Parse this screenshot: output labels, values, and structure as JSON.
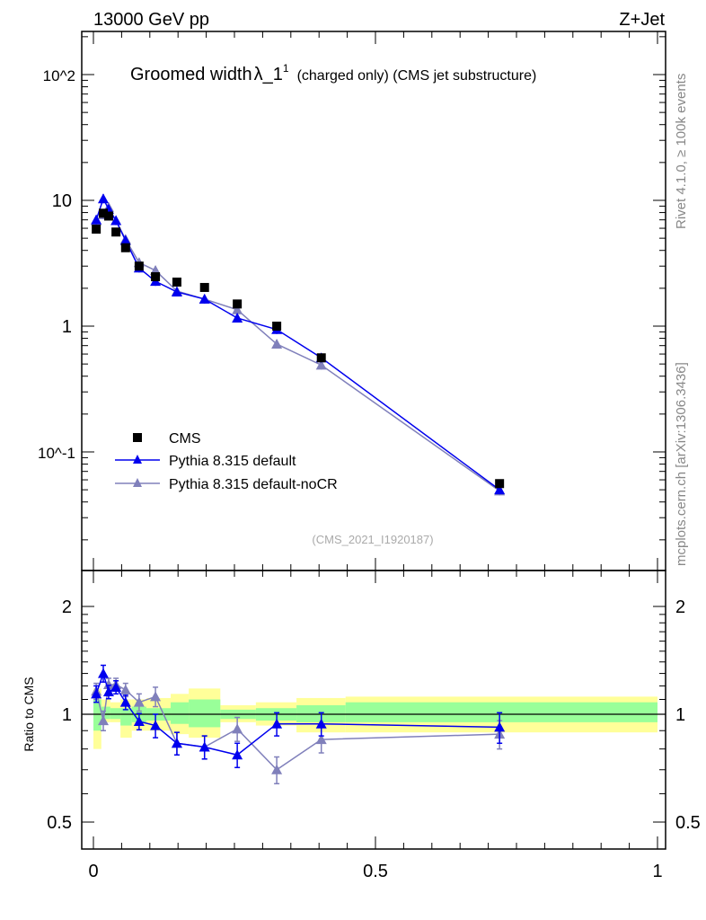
{
  "header": {
    "left": "13000 GeV pp",
    "right": "Z+Jet"
  },
  "side_labels": {
    "rivet": "Rivet 4.1.0, ≥ 100k events",
    "mcplots": "mcplots.cern.ch [arXiv:1306.3436]"
  },
  "title": {
    "main": "Groomed width",
    "symbol": "λ_1",
    "sup": "1",
    "suffix": "(charged only) (CMS jet substructure)"
  },
  "watermark": "(CMS_2021_I1920187)",
  "colors": {
    "cms": "#000000",
    "default": "#0000ee",
    "nocr": "#8080bb",
    "green": "#99ff99",
    "yellow": "#ffff99"
  },
  "chart_data": [
    {
      "type": "scatter",
      "title": "Groomed width λ_1^1 (charged only) (CMS jet substructure)",
      "xlabel": "",
      "ylabel": "",
      "yscale": "log",
      "xlim": [
        0,
        1
      ],
      "ylim": [
        0.0114,
        220
      ],
      "y_tick_labels": [
        "10^2",
        "10",
        "1",
        "10^-1"
      ],
      "legend_position": "bottom-left",
      "x": [
        0.005,
        0.0175,
        0.027,
        0.04,
        0.057,
        0.081,
        0.11,
        0.148,
        0.197,
        0.255,
        0.325,
        0.404,
        0.72
      ],
      "series": [
        {
          "name": "CMS",
          "marker": "square",
          "values": [
            5.9,
            7.9,
            7.5,
            5.6,
            4.2,
            3.0,
            2.47,
            2.24,
            2.03,
            1.5,
            1.0,
            0.56,
            0.056
          ]
        },
        {
          "name": "Pythia 8.315 default",
          "marker": "triangle",
          "values": [
            7.0,
            10.3,
            8.5,
            6.9,
            4.8,
            2.9,
            2.27,
            1.87,
            1.64,
            1.16,
            0.94,
            0.56,
            0.05
          ]
        },
        {
          "name": "Pythia 8.315 default-noCR",
          "marker": "triangle",
          "values": [
            6.9,
            7.7,
            8.8,
            6.9,
            4.9,
            3.2,
            2.77,
            1.9,
            1.64,
            1.35,
            0.72,
            0.49,
            0.049
          ]
        }
      ]
    },
    {
      "type": "line",
      "ylabel": "Ratio to CMS",
      "yscale": "log",
      "xlim": [
        0,
        1
      ],
      "ylim": [
        0.42,
        2.52
      ],
      "x_tick_labels": [
        "0",
        "0.5",
        "1"
      ],
      "y_tick_labels": [
        "2",
        "1",
        "0.5"
      ],
      "band_edges": [
        0,
        0.014,
        0.03,
        0.048,
        0.068,
        0.094,
        0.137,
        0.169,
        0.225,
        0.288,
        0.36,
        0.447,
        1.0
      ],
      "stat_band": [
        [
          0.9,
          1.1
        ],
        [
          0.97,
          1.05
        ],
        [
          0.97,
          1.04
        ],
        [
          0.93,
          1.04
        ],
        [
          0.95,
          1.05
        ],
        [
          0.96,
          1.04
        ],
        [
          0.94,
          1.08
        ],
        [
          0.92,
          1.1
        ],
        [
          0.97,
          1.03
        ],
        [
          0.96,
          1.04
        ],
        [
          0.95,
          1.06
        ],
        [
          0.95,
          1.08
        ],
        [
          0.86,
          1.21
        ]
      ],
      "total_band": [
        [
          0.8,
          1.18
        ],
        [
          0.95,
          1.1
        ],
        [
          0.95,
          1.08
        ],
        [
          0.86,
          1.1
        ],
        [
          0.9,
          1.1
        ],
        [
          0.9,
          1.11
        ],
        [
          0.88,
          1.14
        ],
        [
          0.86,
          1.18
        ],
        [
          0.95,
          1.06
        ],
        [
          0.93,
          1.08
        ],
        [
          0.89,
          1.11
        ],
        [
          0.89,
          1.12
        ],
        [
          0.68,
          1.45
        ]
      ],
      "x": [
        0.005,
        0.0175,
        0.027,
        0.04,
        0.057,
        0.081,
        0.11,
        0.148,
        0.197,
        0.255,
        0.325,
        0.404,
        0.72
      ],
      "series": [
        {
          "name": "Pythia 8.315 default",
          "values": [
            1.14,
            1.3,
            1.155,
            1.19,
            1.08,
            0.955,
            0.93,
            0.83,
            0.81,
            0.77,
            0.94,
            0.94,
            0.92
          ],
          "err": [
            0.06,
            0.07,
            0.05,
            0.05,
            0.05,
            0.05,
            0.07,
            0.06,
            0.06,
            0.06,
            0.07,
            0.07,
            0.09
          ]
        },
        {
          "name": "Pythia 8.315 default-noCR",
          "values": [
            1.16,
            0.96,
            1.21,
            1.21,
            1.17,
            1.08,
            1.12,
            0.83,
            0.81,
            0.91,
            0.7,
            0.85,
            0.88
          ],
          "err": [
            0.06,
            0.06,
            0.05,
            0.05,
            0.05,
            0.06,
            0.07,
            0.06,
            0.06,
            0.07,
            0.06,
            0.07,
            0.08
          ]
        }
      ]
    }
  ]
}
